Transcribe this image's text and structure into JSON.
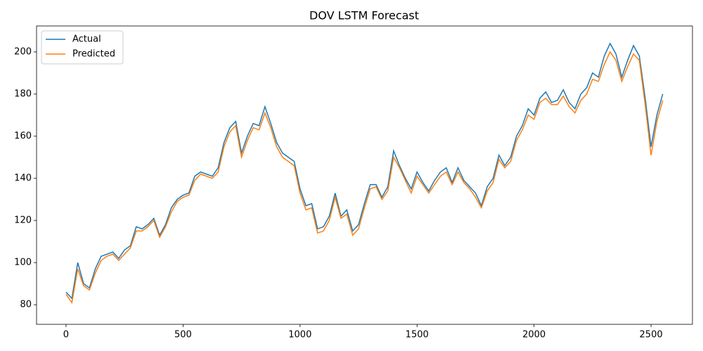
{
  "chart_data": {
    "type": "line",
    "title": "DOV LSTM Forecast",
    "x": [
      0,
      25,
      50,
      75,
      100,
      125,
      150,
      175,
      200,
      225,
      250,
      275,
      300,
      325,
      350,
      375,
      400,
      425,
      450,
      475,
      500,
      525,
      550,
      575,
      600,
      625,
      650,
      675,
      700,
      725,
      750,
      775,
      800,
      825,
      850,
      875,
      900,
      925,
      950,
      975,
      1000,
      1025,
      1050,
      1075,
      1100,
      1125,
      1150,
      1175,
      1200,
      1225,
      1250,
      1275,
      1300,
      1325,
      1350,
      1375,
      1400,
      1425,
      1450,
      1475,
      1500,
      1525,
      1550,
      1575,
      1600,
      1625,
      1650,
      1675,
      1700,
      1725,
      1750,
      1775,
      1800,
      1825,
      1850,
      1875,
      1900,
      1925,
      1950,
      1975,
      2000,
      2025,
      2050,
      2075,
      2100,
      2125,
      2150,
      2175,
      2200,
      2225,
      2250,
      2275,
      2300,
      2325,
      2350,
      2375,
      2400,
      2425,
      2450,
      2475,
      2500,
      2525,
      2550
    ],
    "series": [
      {
        "name": "Actual",
        "color": "#1f77b4",
        "values": [
          86,
          83,
          100,
          90,
          88,
          97,
          103,
          104,
          105,
          102,
          106,
          108,
          117,
          116,
          118,
          121,
          113,
          118,
          126,
          130,
          132,
          133,
          141,
          143,
          142,
          141,
          145,
          157,
          164,
          167,
          152,
          160,
          166,
          165,
          174,
          166,
          157,
          152,
          150,
          148,
          135,
          127,
          128,
          116,
          117,
          122,
          133,
          122,
          125,
          115,
          118,
          128,
          137,
          137,
          131,
          136,
          153,
          146,
          140,
          135,
          143,
          138,
          134,
          139,
          143,
          145,
          138,
          145,
          139,
          136,
          133,
          127,
          136,
          140,
          151,
          146,
          150,
          160,
          165,
          173,
          170,
          178,
          181,
          176,
          177,
          182,
          176,
          173,
          180,
          183,
          190,
          188,
          198,
          204,
          199,
          188,
          196,
          203,
          198,
          178,
          155,
          170,
          180
        ]
      },
      {
        "name": "Predicted",
        "color": "#ff7f0e",
        "values": [
          85,
          81,
          97,
          89,
          87,
          95,
          101,
          103,
          104,
          101,
          104,
          107,
          115,
          115,
          117,
          120,
          112,
          117,
          124,
          129,
          131,
          132,
          139,
          142,
          141,
          140,
          143,
          155,
          162,
          165,
          150,
          158,
          164,
          163,
          171,
          164,
          155,
          150,
          148,
          146,
          133,
          125,
          126,
          114,
          115,
          120,
          131,
          121,
          123,
          113,
          116,
          126,
          135,
          136,
          130,
          134,
          150,
          145,
          139,
          133,
          141,
          137,
          133,
          137,
          141,
          143,
          137,
          143,
          138,
          135,
          131,
          126,
          134,
          138,
          149,
          145,
          148,
          158,
          163,
          170,
          168,
          176,
          178,
          175,
          175,
          179,
          174,
          171,
          177,
          180,
          187,
          186,
          194,
          200,
          196,
          186,
          193,
          199,
          196,
          175,
          151,
          167,
          177
        ]
      }
    ],
    "xlim": [
      -126,
      2677
    ],
    "ylim": [
      70.7,
      212.3
    ],
    "xticks": [
      0,
      500,
      1000,
      1500,
      2000,
      2500
    ],
    "yticks": [
      80,
      100,
      120,
      140,
      160,
      180,
      200
    ],
    "legend": "upper left"
  }
}
